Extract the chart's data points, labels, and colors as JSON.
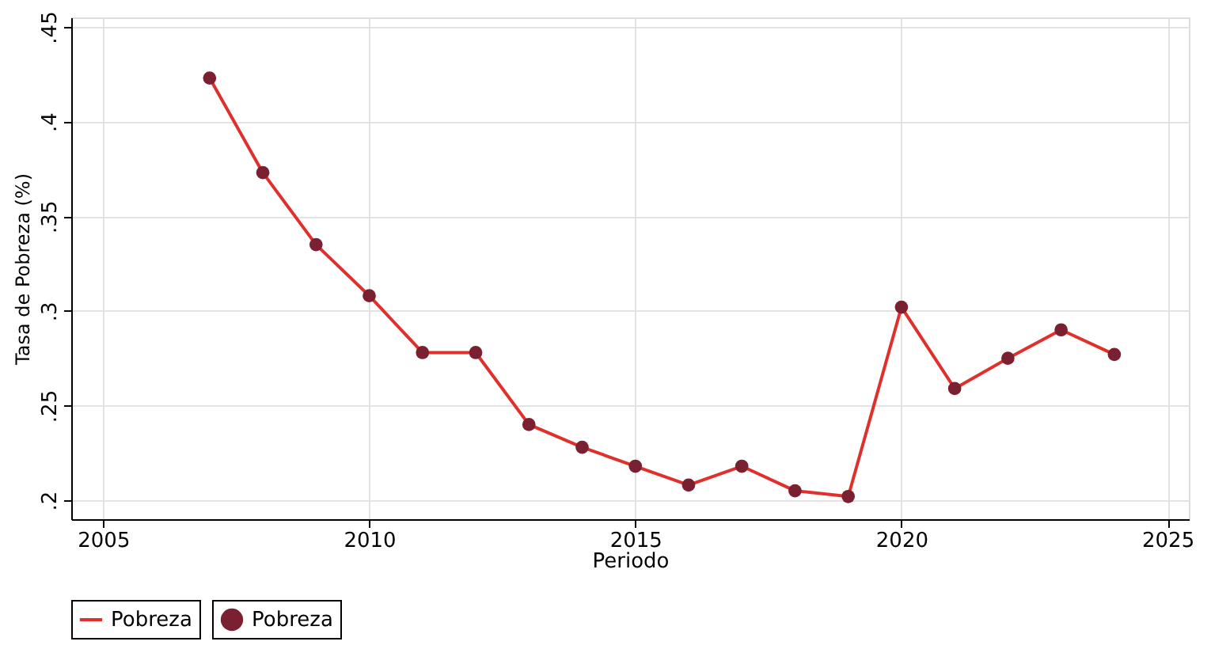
{
  "chart_data": {
    "type": "line",
    "xlabel": "Periodo",
    "ylabel": "Tasa de Pobreza (%)",
    "x": [
      2007,
      2008,
      2009,
      2010,
      2011,
      2012,
      2013,
      2014,
      2015,
      2016,
      2017,
      2018,
      2019,
      2020,
      2021,
      2022,
      2023,
      2024
    ],
    "series": [
      {
        "name": "Pobreza",
        "type": "line",
        "color": "#e0302c",
        "values": [
          0.423,
          0.373,
          0.335,
          0.308,
          0.278,
          0.278,
          0.24,
          0.228,
          0.218,
          0.208,
          0.218,
          0.205,
          0.202,
          0.302,
          0.259,
          0.275,
          0.29,
          0.277
        ]
      },
      {
        "name": "Pobreza",
        "type": "scatter",
        "color": "#7a2030",
        "marker": "circle",
        "values": [
          0.423,
          0.373,
          0.335,
          0.308,
          0.278,
          0.278,
          0.24,
          0.228,
          0.218,
          0.208,
          0.218,
          0.205,
          0.202,
          0.302,
          0.259,
          0.275,
          0.29,
          0.277
        ]
      }
    ],
    "xlim": [
      2004.4,
      2025.4
    ],
    "xticks": [
      2005,
      2010,
      2015,
      2020,
      2025
    ],
    "ylim": [
      0.19,
      0.455
    ],
    "yticks": [
      {
        "value": 0.2,
        "label": ".2"
      },
      {
        "value": 0.25,
        "label": ".25"
      },
      {
        "value": 0.3,
        "label": ".3"
      },
      {
        "value": 0.35,
        "label": ".35"
      },
      {
        "value": 0.4,
        "label": ".4"
      },
      {
        "value": 0.45,
        "label": ".45"
      }
    ],
    "grid": true,
    "legend": "bottom"
  }
}
